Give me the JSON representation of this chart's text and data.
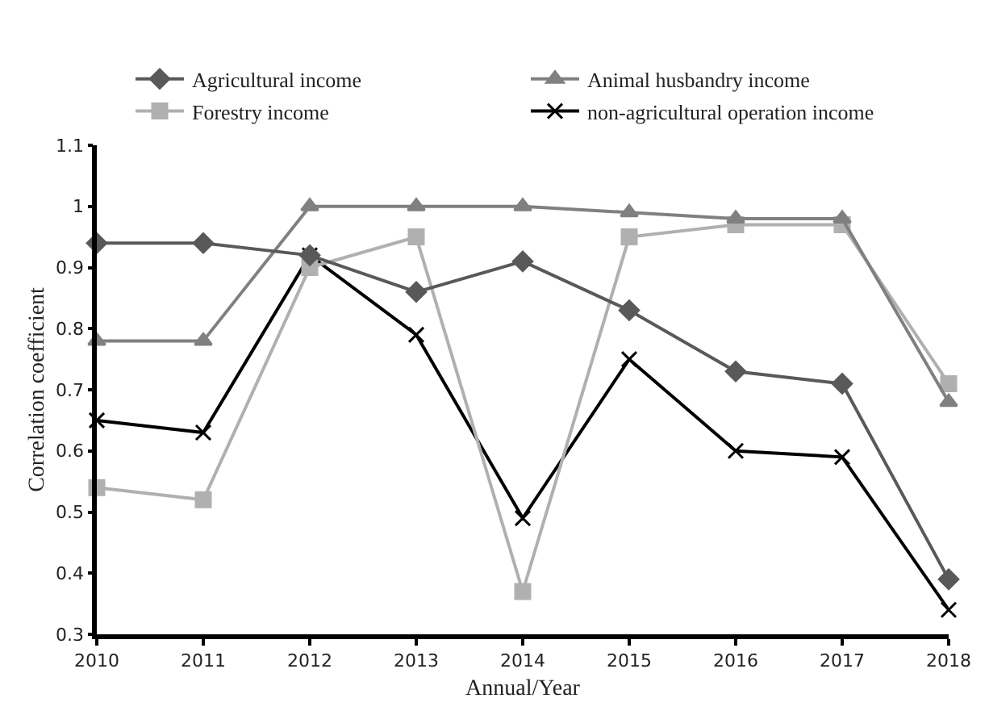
{
  "chart_data": {
    "type": "line",
    "xlabel": "Annual/Year",
    "ylabel": "Correlation coefficient",
    "x": [
      2010,
      2011,
      2012,
      2013,
      2014,
      2015,
      2016,
      2017,
      2018
    ],
    "xlim": [
      2010,
      2018
    ],
    "xticks": [
      2010,
      2011,
      2012,
      2013,
      2014,
      2015,
      2016,
      2017,
      2018
    ],
    "ylim": [
      0.3,
      1.1
    ],
    "yticks": [
      0.3,
      0.4,
      0.5,
      0.6,
      0.7,
      0.8,
      0.9,
      1,
      1.1
    ],
    "legend": "top",
    "line_style": "solid",
    "series": [
      {
        "name": "Agricultural income",
        "color": "#595959",
        "marker": "diamond",
        "values": [
          0.94,
          0.94,
          0.92,
          0.86,
          0.91,
          0.83,
          0.73,
          0.71,
          0.39
        ]
      },
      {
        "name": "Animal husbandry income",
        "color": "#808080",
        "marker": "triangle",
        "values": [
          0.78,
          0.78,
          1.0,
          1.0,
          1.0,
          0.99,
          0.98,
          0.98,
          0.68
        ]
      },
      {
        "name": "Forestry income",
        "color": "#b0b0b0",
        "marker": "square",
        "values": [
          0.54,
          0.52,
          0.9,
          0.95,
          0.37,
          0.95,
          0.97,
          0.97,
          0.71
        ]
      },
      {
        "name": "non-agricultural operation income",
        "color": "#000000",
        "marker": "cross",
        "values": [
          0.65,
          0.63,
          0.92,
          0.79,
          0.49,
          0.75,
          0.6,
          0.59,
          0.34
        ]
      }
    ]
  }
}
